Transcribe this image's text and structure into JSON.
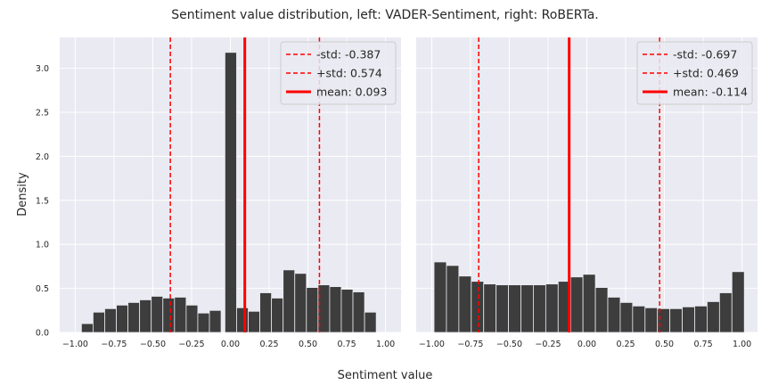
{
  "figure": {
    "title": "Sentiment value distribution, left: VADER-Sentiment, right: RoBERTa.",
    "xlabel": "Sentiment value",
    "ylabel": "Density"
  },
  "colors": {
    "panel_bg": "#eaeaf2",
    "grid": "#ffffff",
    "bar_fill": "#3d3d3d",
    "bar_edge": "#eaeaf2",
    "line": "#ff0000",
    "legend_bg": "#eaeaf2",
    "legend_edge": "#cccccc"
  },
  "chart_data": [
    {
      "type": "bar",
      "name": "VADER-Sentiment",
      "bin_edges": [
        -1.0,
        -0.9,
        -0.8,
        -0.7,
        -0.6,
        -0.5,
        -0.4,
        -0.3,
        -0.2,
        -0.1,
        0.0,
        0.1,
        0.2,
        0.3,
        0.4,
        0.5,
        0.6,
        0.7,
        0.8,
        0.9,
        1.0
      ],
      "bins": [
        {
          "start": -0.96,
          "end": -0.885,
          "value": 0.1
        },
        {
          "start": -0.885,
          "end": -0.81,
          "value": 0.23
        },
        {
          "start": -0.81,
          "end": -0.735,
          "value": 0.27
        },
        {
          "start": -0.735,
          "end": -0.66,
          "value": 0.31
        },
        {
          "start": -0.66,
          "end": -0.585,
          "value": 0.34
        },
        {
          "start": -0.585,
          "end": -0.51,
          "value": 0.37
        },
        {
          "start": -0.51,
          "end": -0.435,
          "value": 0.41
        },
        {
          "start": -0.435,
          "end": -0.36,
          "value": 0.39
        },
        {
          "start": -0.36,
          "end": -0.285,
          "value": 0.4
        },
        {
          "start": -0.285,
          "end": -0.21,
          "value": 0.31
        },
        {
          "start": -0.21,
          "end": -0.135,
          "value": 0.22
        },
        {
          "start": -0.135,
          "end": -0.06,
          "value": 0.25
        },
        {
          "start": -0.035,
          "end": 0.04,
          "value": 3.18
        },
        {
          "start": 0.04,
          "end": 0.115,
          "value": 0.28
        },
        {
          "start": 0.115,
          "end": 0.19,
          "value": 0.24
        },
        {
          "start": 0.19,
          "end": 0.265,
          "value": 0.45
        },
        {
          "start": 0.265,
          "end": 0.34,
          "value": 0.39
        },
        {
          "start": 0.34,
          "end": 0.415,
          "value": 0.71
        },
        {
          "start": 0.415,
          "end": 0.49,
          "value": 0.67
        },
        {
          "start": 0.49,
          "end": 0.565,
          "value": 0.51
        },
        {
          "start": 0.565,
          "end": 0.64,
          "value": 0.54
        },
        {
          "start": 0.64,
          "end": 0.715,
          "value": 0.52
        },
        {
          "start": 0.715,
          "end": 0.79,
          "value": 0.49
        },
        {
          "start": 0.79,
          "end": 0.865,
          "value": 0.46
        },
        {
          "start": 0.865,
          "end": 0.94,
          "value": 0.23
        }
      ],
      "std_minus": -0.387,
      "std_plus": 0.574,
      "mean": 0.093,
      "xlim": [
        -1.1,
        1.1
      ],
      "ylim": [
        0,
        3.35
      ],
      "xticks": [
        -1.0,
        -0.75,
        -0.5,
        -0.25,
        0.0,
        0.25,
        0.5,
        0.75,
        1.0
      ],
      "xtick_labels": [
        "−1.00",
        "−0.75",
        "−0.50",
        "−0.25",
        "0.00",
        "0.25",
        "0.50",
        "0.75",
        "1.00"
      ],
      "yticks": [
        0,
        0.5,
        1.0,
        1.5,
        2.0,
        2.5,
        3.0
      ],
      "ytick_labels": [
        "0.0",
        "0.5",
        "1.0",
        "1.5",
        "2.0",
        "2.5",
        "3.0"
      ],
      "legend": [
        "-std: -0.387",
        "+std: 0.574",
        "mean: 0.093"
      ],
      "legend_position": "top-right",
      "grid": true
    },
    {
      "type": "bar",
      "name": "RoBERTa",
      "bins": [
        {
          "start": -0.985,
          "end": -0.905,
          "value": 0.8
        },
        {
          "start": -0.905,
          "end": -0.825,
          "value": 0.76
        },
        {
          "start": -0.825,
          "end": -0.745,
          "value": 0.64
        },
        {
          "start": -0.745,
          "end": -0.665,
          "value": 0.58
        },
        {
          "start": -0.665,
          "end": -0.585,
          "value": 0.55
        },
        {
          "start": -0.585,
          "end": -0.505,
          "value": 0.54
        },
        {
          "start": -0.505,
          "end": -0.425,
          "value": 0.54
        },
        {
          "start": -0.425,
          "end": -0.345,
          "value": 0.54
        },
        {
          "start": -0.345,
          "end": -0.265,
          "value": 0.54
        },
        {
          "start": -0.265,
          "end": -0.185,
          "value": 0.55
        },
        {
          "start": -0.185,
          "end": -0.105,
          "value": 0.58
        },
        {
          "start": -0.105,
          "end": -0.025,
          "value": 0.63
        },
        {
          "start": -0.025,
          "end": 0.055,
          "value": 0.66
        },
        {
          "start": 0.055,
          "end": 0.135,
          "value": 0.51
        },
        {
          "start": 0.135,
          "end": 0.215,
          "value": 0.4
        },
        {
          "start": 0.215,
          "end": 0.295,
          "value": 0.34
        },
        {
          "start": 0.295,
          "end": 0.375,
          "value": 0.3
        },
        {
          "start": 0.375,
          "end": 0.455,
          "value": 0.28
        },
        {
          "start": 0.455,
          "end": 0.535,
          "value": 0.27
        },
        {
          "start": 0.535,
          "end": 0.615,
          "value": 0.27
        },
        {
          "start": 0.615,
          "end": 0.695,
          "value": 0.29
        },
        {
          "start": 0.695,
          "end": 0.775,
          "value": 0.3
        },
        {
          "start": 0.775,
          "end": 0.855,
          "value": 0.35
        },
        {
          "start": 0.855,
          "end": 0.935,
          "value": 0.45
        },
        {
          "start": 0.935,
          "end": 1.015,
          "value": 0.69
        }
      ],
      "std_minus": -0.697,
      "std_plus": 0.469,
      "mean": -0.114,
      "xlim": [
        -1.1,
        1.1
      ],
      "ylim": [
        0,
        3.35
      ],
      "xticks": [
        -1.0,
        -0.75,
        -0.5,
        -0.25,
        0.0,
        0.25,
        0.5,
        0.75,
        1.0
      ],
      "xtick_labels": [
        "−1.00",
        "−0.75",
        "−0.50",
        "−0.25",
        "0.00",
        "0.25",
        "0.50",
        "0.75",
        "1.00"
      ],
      "yticks": [
        0,
        0.5,
        1.0,
        1.5,
        2.0,
        2.5,
        3.0
      ],
      "ytick_labels": [],
      "legend": [
        "-std: -0.697",
        "+std: 0.469",
        "mean: -0.114"
      ],
      "legend_position": "top-right",
      "grid": true
    }
  ]
}
